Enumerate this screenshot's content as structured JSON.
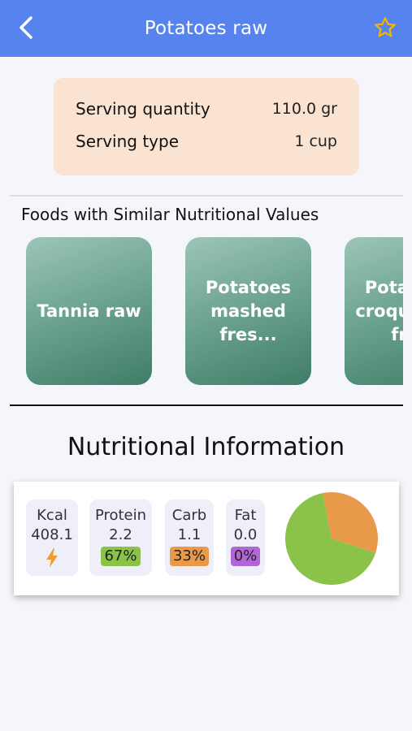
{
  "header": {
    "title": "Potatoes raw",
    "back_icon": "chevron-left-icon",
    "favorite_icon": "star-outline-icon"
  },
  "serving": {
    "quantity_label": "Serving quantity",
    "quantity_value": "110.0 gr",
    "type_label": "Serving type",
    "type_value": "1 cup"
  },
  "similar": {
    "heading": "Foods with Similar Nutritional Values",
    "items": [
      {
        "name": "Tannia raw"
      },
      {
        "name": "Potatoes mashed fres..."
      },
      {
        "name": "Potatoes croquettes fr..."
      }
    ]
  },
  "nutrition": {
    "heading": "Nutritional Information",
    "kcal": {
      "label": "Kcal",
      "value": "408.1",
      "icon": "lightning-icon",
      "color": "#f29b2e"
    },
    "protein": {
      "label": "Protein",
      "value": "2.2",
      "percent": "67%",
      "color": "#8bc34a"
    },
    "carb": {
      "label": "Carb",
      "value": "1.1",
      "percent": "33%",
      "color": "#e99a48"
    },
    "fat": {
      "label": "Fat",
      "value": "0.0",
      "percent": "0%",
      "color": "#b266d6"
    },
    "pie_fractions": {
      "protein": 0.67,
      "carb": 0.33,
      "fat": 0.0
    }
  },
  "colors": {
    "appbar": "#5683ee",
    "serving_card": "#fbe3d2",
    "star": "#f5b400"
  }
}
